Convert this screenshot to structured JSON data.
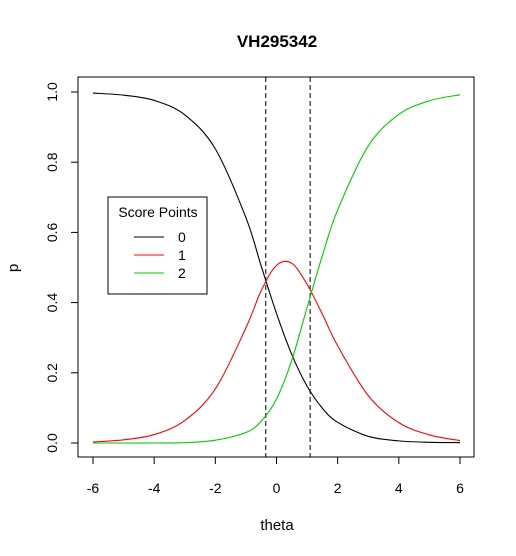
{
  "chart_data": {
    "type": "line",
    "title": "VH295342",
    "xlabel": "theta",
    "ylabel": "p",
    "xlim": [
      -6,
      6
    ],
    "ylim": [
      0,
      1
    ],
    "xticks": [
      -6,
      -4,
      -2,
      0,
      2,
      4,
      6
    ],
    "yticks": [
      0.0,
      0.2,
      0.4,
      0.6,
      0.8,
      1.0
    ],
    "x": [
      -6,
      -5,
      -4,
      -3,
      -2,
      -1,
      -0.5,
      0,
      0.5,
      1,
      1.5,
      2,
      3,
      4,
      5,
      6
    ],
    "series": [
      {
        "name": "0",
        "color": "#000000",
        "values": [
          0.997,
          0.991,
          0.976,
          0.935,
          0.838,
          0.642,
          0.504,
          0.369,
          0.252,
          0.162,
          0.099,
          0.059,
          0.019,
          0.006,
          0.002,
          0.001
        ]
      },
      {
        "name": "1",
        "color": "#ff0000",
        "values": [
          0.003,
          0.009,
          0.024,
          0.064,
          0.154,
          0.328,
          0.434,
          0.506,
          0.512,
          0.452,
          0.367,
          0.277,
          0.135,
          0.058,
          0.023,
          0.007
        ]
      },
      {
        "name": "2",
        "color": "#00cd00",
        "values": [
          0.0,
          0.0,
          0.0,
          0.001,
          0.008,
          0.03,
          0.062,
          0.125,
          0.236,
          0.386,
          0.534,
          0.664,
          0.846,
          0.936,
          0.975,
          0.992
        ]
      }
    ],
    "vlines": [
      -0.35,
      1.1
    ],
    "legend": {
      "title": "Score Points",
      "position": "left"
    },
    "grid": false
  }
}
